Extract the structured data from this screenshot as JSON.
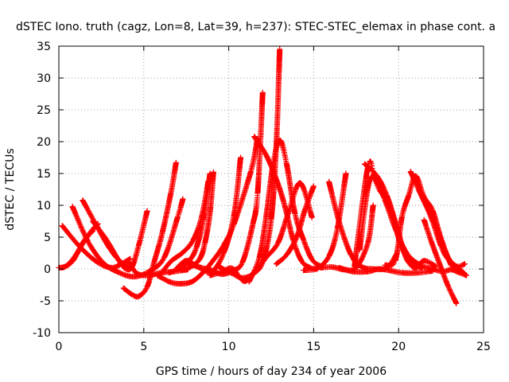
{
  "chart_data": {
    "type": "line",
    "title": "dSTEC Iono. truth (cagz, Lon=8, Lat=39, h=237): STEC-STEC_elemax in phase cont. a",
    "xlabel": "GPS time / hours of day 234 of year 2006",
    "ylabel": "dSTEC  / TECUs",
    "xlim": [
      0,
      25
    ],
    "ylim": [
      -10,
      35
    ],
    "xticks": [
      "0",
      "5",
      "10",
      "15",
      "20",
      "25"
    ],
    "yticks": [
      "-10",
      "-5",
      "0",
      "5",
      "10",
      "15",
      "20",
      "25",
      "30",
      "35"
    ],
    "grid": true,
    "marker": "+",
    "color": "#ff0000",
    "series": [
      {
        "x": [
          0.0,
          0.4,
          0.9,
          1.4,
          1.9,
          2.3
        ],
        "y": [
          0.2,
          0.4,
          1.8,
          4.0,
          5.9,
          7.1
        ]
      },
      {
        "x": [
          0.2,
          1.2,
          2.2,
          3.1,
          3.8,
          4.2
        ],
        "y": [
          6.8,
          3.6,
          1.2,
          0.2,
          1.0,
          1.6
        ]
      },
      {
        "x": [
          0.8,
          1.7,
          2.6,
          3.5,
          4.4,
          5.3,
          6.2,
          7.0,
          7.3
        ],
        "y": [
          9.8,
          4.4,
          1.0,
          -0.5,
          -1.2,
          -0.4,
          1.8,
          8.2,
          11.0
        ]
      },
      {
        "x": [
          1.4,
          2.2,
          3.0,
          3.6,
          4.1
        ],
        "y": [
          10.8,
          6.9,
          3.2,
          1.2,
          0.2
        ]
      },
      {
        "x": [
          0.2,
          0.8,
          1.5,
          2.0
        ],
        "y": [
          0.2,
          1.2,
          4.5,
          6.0
        ]
      },
      {
        "x": [
          3.8,
          4.3,
          4.7,
          5.2,
          5.6,
          6.1,
          6.6,
          6.9
        ],
        "y": [
          -3.0,
          -4.0,
          -4.3,
          -2.8,
          1.0,
          5.8,
          12.0,
          16.7
        ]
      },
      {
        "x": [
          4.1,
          4.6,
          5.3,
          6.0,
          6.8,
          7.6
        ],
        "y": [
          1.1,
          -0.7,
          -1.0,
          -0.6,
          -0.4,
          -0.1
        ]
      },
      {
        "x": [
          2.0,
          2.8,
          3.4,
          3.9,
          4.3,
          4.7,
          5.2
        ],
        "y": [
          7.5,
          4.6,
          1.9,
          0.1,
          0.3,
          3.7,
          9.1
        ]
      },
      {
        "x": [
          5.8,
          6.6,
          7.3,
          7.9,
          8.5,
          9.1,
          9.7,
          10.3,
          11.3,
          11.7
        ],
        "y": [
          -1.0,
          -2.1,
          -2.3,
          -1.9,
          -0.5,
          1.4,
          3.7,
          7.0,
          15.3,
          20.5
        ]
      },
      {
        "x": [
          6.0,
          6.6,
          7.3,
          7.9,
          8.4,
          8.8
        ],
        "y": [
          -0.8,
          1.2,
          2.6,
          4.5,
          8.1,
          13.8
        ]
      },
      {
        "x": [
          6.5,
          7.1,
          7.7,
          8.1,
          8.5,
          8.9
        ],
        "y": [
          -0.6,
          0.1,
          1.4,
          3.4,
          7.7,
          15.0
        ]
      },
      {
        "x": [
          7.2,
          7.8,
          8.3,
          8.6,
          8.9,
          9.1
        ],
        "y": [
          -0.2,
          0.4,
          1.6,
          4.1,
          8.9,
          15.2
        ]
      },
      {
        "x": [
          6.9,
          7.5,
          8.2,
          9.0,
          9.7,
          10.3,
          10.7
        ],
        "y": [
          0.0,
          1.3,
          0.3,
          -0.4,
          2.5,
          8.3,
          17.5
        ]
      },
      {
        "x": [
          7.6,
          8.4,
          9.0,
          9.6,
          10.2,
          10.8,
          11.4,
          11.7,
          12.0
        ],
        "y": [
          0.8,
          0.2,
          -0.2,
          -0.8,
          -0.3,
          1.0,
          6.8,
          11.9,
          27.7
        ]
      },
      {
        "x": [
          9.4,
          10.2,
          10.8,
          11.4,
          12.0,
          12.5,
          12.8,
          13.0
        ],
        "y": [
          0.4,
          -0.7,
          -1.4,
          -0.8,
          1.1,
          7.8,
          19.5,
          34.5
        ]
      },
      {
        "x": [
          8.9,
          9.6,
          10.2,
          10.9,
          11.5,
          12.2,
          12.9,
          13.5,
          14.2,
          14.9
        ],
        "y": [
          -1.0,
          -0.5,
          0.1,
          -1.9,
          -0.6,
          1.8,
          4.1,
          8.7,
          13.5,
          8.1
        ]
      },
      {
        "x": [
          11.2,
          11.8,
          12.2,
          12.6,
          13.0,
          13.4,
          13.9,
          14.4,
          14.9,
          15.4
        ],
        "y": [
          -2.0,
          1.8,
          8.2,
          16.3,
          20.2,
          16.6,
          8.7,
          4.6,
          1.5,
          0.4
        ]
      },
      {
        "x": [
          11.5,
          12.2,
          12.8,
          13.3,
          13.8,
          14.3,
          14.8,
          15.2
        ],
        "y": [
          20.8,
          17.9,
          14.1,
          9.9,
          4.5,
          1.2,
          0.2,
          0.0
        ]
      },
      {
        "x": [
          12.8,
          13.4,
          14.0,
          14.5,
          15.0
        ],
        "y": [
          0.8,
          2.2,
          5.0,
          9.4,
          13.0
        ]
      },
      {
        "x": [
          14.4,
          15.2,
          15.9,
          16.4,
          16.9
        ],
        "y": [
          -0.2,
          0.1,
          2.0,
          6.4,
          15.0
        ]
      },
      {
        "x": [
          15.4,
          16.1,
          16.8,
          17.5,
          18.2,
          18.5
        ],
        "y": [
          0.2,
          0.3,
          -0.1,
          0.2,
          4.2,
          10.0
        ]
      },
      {
        "x": [
          15.9,
          16.5,
          17.2,
          17.8,
          18.5,
          19.3,
          19.9
        ],
        "y": [
          13.7,
          7.4,
          2.2,
          0.4,
          0.0,
          0.2,
          2.4
        ]
      },
      {
        "x": [
          16.5,
          17.3,
          18.2,
          18.8,
          19.4,
          20.2,
          21.1,
          22.0
        ],
        "y": [
          0.2,
          -0.4,
          -0.4,
          0.0,
          -0.2,
          -0.6,
          -0.6,
          -0.3
        ]
      },
      {
        "x": [
          17.4,
          18.2,
          18.6,
          19.2,
          19.8,
          20.5,
          21.3,
          22.1
        ],
        "y": [
          0.4,
          16.1,
          14.3,
          10.8,
          6.4,
          2.4,
          0.6,
          0.0
        ]
      },
      {
        "x": [
          17.7,
          18.3,
          18.9,
          19.5,
          20.1,
          20.7,
          21.4
        ],
        "y": [
          3.0,
          14.0,
          12.3,
          9.7,
          4.0,
          1.0,
          0.2
        ]
      },
      {
        "x": [
          18.0,
          18.7,
          19.3,
          19.9,
          20.3,
          20.6,
          21.0,
          21.5,
          22.2
        ],
        "y": [
          16.5,
          14.7,
          11.6,
          6.6,
          2.8,
          1.0,
          0.2,
          1.3,
          0.4
        ]
      },
      {
        "x": [
          19.2,
          19.8,
          20.2,
          20.6,
          21.0,
          21.5,
          22.0,
          22.5,
          23.1,
          23.5
        ],
        "y": [
          0.6,
          1.3,
          8.2,
          11.6,
          14.6,
          11.3,
          9.2,
          4.8,
          0.6,
          0.0
        ]
      },
      {
        "x": [
          20.7,
          21.4,
          22.1,
          22.6,
          23.0,
          23.5,
          23.9
        ],
        "y": [
          15.3,
          11.2,
          7.4,
          3.8,
          1.4,
          0.2,
          -0.8
        ]
      },
      {
        "x": [
          21.2,
          21.9,
          22.5,
          22.9,
          23.4,
          23.9
        ],
        "y": [
          12.4,
          8.2,
          3.6,
          1.6,
          0.4,
          0.8
        ]
      },
      {
        "x": [
          21.5,
          21.9,
          22.4,
          22.9,
          23.4
        ],
        "y": [
          7.7,
          4.5,
          0.9,
          -2.6,
          -5.4
        ]
      },
      {
        "x": [
          22.0,
          22.6,
          23.1,
          23.6,
          24.0
        ],
        "y": [
          0.0,
          -0.4,
          -0.1,
          -0.6,
          -1.0
        ]
      }
    ]
  }
}
